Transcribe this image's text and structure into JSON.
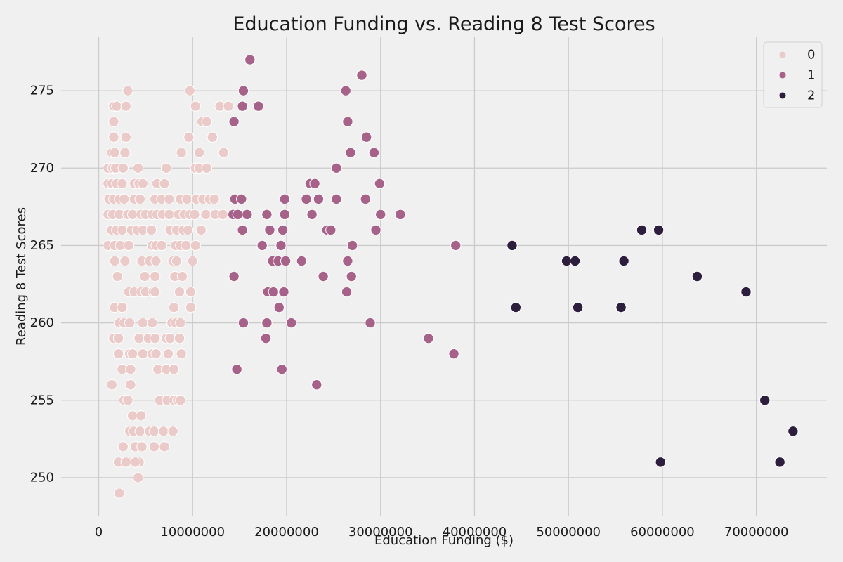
{
  "chart_data": {
    "type": "scatter",
    "title": "Education Funding vs. Reading 8 Test Scores",
    "xlabel": "Education Funding ($)",
    "ylabel": "Reading 8 Test Scores",
    "xlim": [
      -4000000,
      77500000
    ],
    "ylim": [
      247.5,
      278.5
    ],
    "xticks": [
      0,
      10000000,
      20000000,
      30000000,
      40000000,
      50000000,
      60000000,
      70000000
    ],
    "xtick_labels": [
      "0",
      "10000000",
      "20000000",
      "30000000",
      "40000000",
      "50000000",
      "60000000",
      "70000000"
    ],
    "yticks": [
      250,
      255,
      260,
      265,
      270,
      275
    ],
    "ytick_labels": [
      "250",
      "255",
      "260",
      "265",
      "270",
      "275"
    ],
    "grid": true,
    "legend_position": "top-right",
    "series": [
      {
        "name": "0",
        "color": "#ebcbc9",
        "points": [
          [
            2200000,
            249
          ],
          [
            4200000,
            250
          ],
          [
            2100000,
            251
          ],
          [
            3200000,
            251
          ],
          [
            4300000,
            251
          ],
          [
            3900000,
            251
          ],
          [
            2900000,
            251
          ],
          [
            2600000,
            252
          ],
          [
            3900000,
            252
          ],
          [
            4600000,
            252
          ],
          [
            5900000,
            252
          ],
          [
            7000000,
            252
          ],
          [
            3300000,
            253
          ],
          [
            3700000,
            253
          ],
          [
            4400000,
            253
          ],
          [
            5400000,
            253
          ],
          [
            5900000,
            253
          ],
          [
            6900000,
            253
          ],
          [
            7900000,
            253
          ],
          [
            3600000,
            254
          ],
          [
            4500000,
            254
          ],
          [
            2700000,
            255
          ],
          [
            3100000,
            255
          ],
          [
            6500000,
            255
          ],
          [
            7300000,
            255
          ],
          [
            8000000,
            255
          ],
          [
            8400000,
            255
          ],
          [
            8700000,
            255
          ],
          [
            1400000,
            256
          ],
          [
            3400000,
            256
          ],
          [
            2500000,
            257
          ],
          [
            3400000,
            257
          ],
          [
            6300000,
            257
          ],
          [
            7200000,
            257
          ],
          [
            8000000,
            257
          ],
          [
            2100000,
            258
          ],
          [
            3300000,
            258
          ],
          [
            3600000,
            258
          ],
          [
            4700000,
            258
          ],
          [
            5700000,
            258
          ],
          [
            6100000,
            258
          ],
          [
            7400000,
            258
          ],
          [
            8800000,
            258
          ],
          [
            1600000,
            259
          ],
          [
            2100000,
            259
          ],
          [
            4300000,
            259
          ],
          [
            5300000,
            259
          ],
          [
            6000000,
            259
          ],
          [
            7200000,
            259
          ],
          [
            7600000,
            259
          ],
          [
            8600000,
            259
          ],
          [
            2200000,
            260
          ],
          [
            2700000,
            260
          ],
          [
            3300000,
            260
          ],
          [
            4700000,
            260
          ],
          [
            5700000,
            260
          ],
          [
            7800000,
            260
          ],
          [
            8200000,
            260
          ],
          [
            8700000,
            260
          ],
          [
            1700000,
            261
          ],
          [
            2500000,
            261
          ],
          [
            8000000,
            261
          ],
          [
            9800000,
            261
          ],
          [
            3200000,
            262
          ],
          [
            3800000,
            262
          ],
          [
            4500000,
            262
          ],
          [
            5000000,
            262
          ],
          [
            5800000,
            262
          ],
          [
            6000000,
            262
          ],
          [
            8600000,
            262
          ],
          [
            9800000,
            262
          ],
          [
            2000000,
            263
          ],
          [
            4900000,
            263
          ],
          [
            6000000,
            263
          ],
          [
            8100000,
            263
          ],
          [
            8900000,
            263
          ],
          [
            1700000,
            264
          ],
          [
            2800000,
            264
          ],
          [
            4600000,
            264
          ],
          [
            5400000,
            264
          ],
          [
            6100000,
            264
          ],
          [
            7900000,
            264
          ],
          [
            8300000,
            264
          ],
          [
            10000000,
            264
          ],
          [
            1000000,
            265
          ],
          [
            1700000,
            265
          ],
          [
            2300000,
            265
          ],
          [
            3200000,
            265
          ],
          [
            5700000,
            265
          ],
          [
            6100000,
            265
          ],
          [
            6700000,
            265
          ],
          [
            8200000,
            265
          ],
          [
            8700000,
            265
          ],
          [
            9300000,
            265
          ],
          [
            10300000,
            265
          ],
          [
            1400000,
            266
          ],
          [
            1900000,
            266
          ],
          [
            2500000,
            266
          ],
          [
            3500000,
            266
          ],
          [
            4100000,
            266
          ],
          [
            4700000,
            266
          ],
          [
            5600000,
            266
          ],
          [
            7600000,
            266
          ],
          [
            8300000,
            266
          ],
          [
            9000000,
            266
          ],
          [
            9500000,
            266
          ],
          [
            10900000,
            266
          ],
          [
            1000000,
            267
          ],
          [
            1500000,
            267
          ],
          [
            2200000,
            267
          ],
          [
            3100000,
            267
          ],
          [
            3600000,
            267
          ],
          [
            4500000,
            267
          ],
          [
            5000000,
            267
          ],
          [
            5700000,
            267
          ],
          [
            6200000,
            267
          ],
          [
            6800000,
            267
          ],
          [
            7500000,
            267
          ],
          [
            8500000,
            267
          ],
          [
            9100000,
            267
          ],
          [
            9700000,
            267
          ],
          [
            10200000,
            267
          ],
          [
            11400000,
            267
          ],
          [
            12400000,
            267
          ],
          [
            13200000,
            267
          ],
          [
            1100000,
            268
          ],
          [
            1600000,
            268
          ],
          [
            2200000,
            268
          ],
          [
            2700000,
            268
          ],
          [
            3800000,
            268
          ],
          [
            4400000,
            268
          ],
          [
            6000000,
            268
          ],
          [
            6700000,
            268
          ],
          [
            7500000,
            268
          ],
          [
            8700000,
            268
          ],
          [
            9400000,
            268
          ],
          [
            10400000,
            268
          ],
          [
            11100000,
            268
          ],
          [
            11800000,
            268
          ],
          [
            12300000,
            268
          ],
          [
            1000000,
            269
          ],
          [
            1400000,
            269
          ],
          [
            1900000,
            269
          ],
          [
            2500000,
            269
          ],
          [
            3800000,
            269
          ],
          [
            4300000,
            269
          ],
          [
            4700000,
            269
          ],
          [
            6200000,
            269
          ],
          [
            7000000,
            269
          ],
          [
            1000000,
            270
          ],
          [
            1500000,
            270
          ],
          [
            1800000,
            270
          ],
          [
            2600000,
            270
          ],
          [
            4200000,
            270
          ],
          [
            7200000,
            270
          ],
          [
            10300000,
            270
          ],
          [
            10700000,
            270
          ],
          [
            11500000,
            270
          ],
          [
            1400000,
            271
          ],
          [
            1700000,
            271
          ],
          [
            2800000,
            271
          ],
          [
            8800000,
            271
          ],
          [
            10700000,
            271
          ],
          [
            13300000,
            271
          ],
          [
            1600000,
            272
          ],
          [
            2900000,
            272
          ],
          [
            9600000,
            272
          ],
          [
            12100000,
            272
          ],
          [
            1600000,
            273
          ],
          [
            11000000,
            273
          ],
          [
            11500000,
            273
          ],
          [
            1600000,
            274
          ],
          [
            1900000,
            274
          ],
          [
            2900000,
            274
          ],
          [
            10300000,
            274
          ],
          [
            12900000,
            274
          ],
          [
            13800000,
            274
          ],
          [
            3100000,
            275
          ],
          [
            9700000,
            275
          ]
        ]
      },
      {
        "name": "1",
        "color": "#a7628a",
        "points": [
          [
            16100000,
            277
          ],
          [
            28000000,
            276
          ],
          [
            15400000,
            275
          ],
          [
            26300000,
            275
          ],
          [
            15300000,
            274
          ],
          [
            17000000,
            274
          ],
          [
            14400000,
            273
          ],
          [
            26500000,
            273
          ],
          [
            28500000,
            272
          ],
          [
            26800000,
            271
          ],
          [
            29300000,
            271
          ],
          [
            25300000,
            270
          ],
          [
            22500000,
            269
          ],
          [
            23000000,
            269
          ],
          [
            29900000,
            269
          ],
          [
            14500000,
            268
          ],
          [
            15200000,
            268
          ],
          [
            19800000,
            268
          ],
          [
            22100000,
            268
          ],
          [
            23400000,
            268
          ],
          [
            25300000,
            268
          ],
          [
            28400000,
            268
          ],
          [
            14300000,
            267
          ],
          [
            14800000,
            267
          ],
          [
            15800000,
            267
          ],
          [
            17900000,
            267
          ],
          [
            19800000,
            267
          ],
          [
            22700000,
            267
          ],
          [
            30000000,
            267
          ],
          [
            32100000,
            267
          ],
          [
            15300000,
            266
          ],
          [
            18200000,
            266
          ],
          [
            19600000,
            266
          ],
          [
            24300000,
            266
          ],
          [
            24700000,
            266
          ],
          [
            29500000,
            266
          ],
          [
            17400000,
            265
          ],
          [
            19400000,
            265
          ],
          [
            27000000,
            265
          ],
          [
            38000000,
            265
          ],
          [
            18500000,
            264
          ],
          [
            19100000,
            264
          ],
          [
            19900000,
            264
          ],
          [
            21600000,
            264
          ],
          [
            26500000,
            264
          ],
          [
            14400000,
            263
          ],
          [
            23900000,
            263
          ],
          [
            26900000,
            263
          ],
          [
            18000000,
            262
          ],
          [
            18600000,
            262
          ],
          [
            19700000,
            262
          ],
          [
            26400000,
            262
          ],
          [
            19200000,
            261
          ],
          [
            15400000,
            260
          ],
          [
            17900000,
            260
          ],
          [
            20500000,
            260
          ],
          [
            28900000,
            260
          ],
          [
            17800000,
            259
          ],
          [
            35100000,
            259
          ],
          [
            37800000,
            258
          ],
          [
            14700000,
            257
          ],
          [
            19500000,
            257
          ],
          [
            23200000,
            256
          ]
        ]
      },
      {
        "name": "2",
        "color": "#2d1e3e",
        "points": [
          [
            57800000,
            266
          ],
          [
            59600000,
            266
          ],
          [
            44000000,
            265
          ],
          [
            49800000,
            264
          ],
          [
            50700000,
            264
          ],
          [
            55900000,
            264
          ],
          [
            63700000,
            263
          ],
          [
            68900000,
            262
          ],
          [
            44400000,
            261
          ],
          [
            51000000,
            261
          ],
          [
            55600000,
            261
          ],
          [
            70900000,
            255
          ],
          [
            73900000,
            253
          ],
          [
            59800000,
            251
          ],
          [
            72500000,
            251
          ]
        ]
      }
    ]
  }
}
